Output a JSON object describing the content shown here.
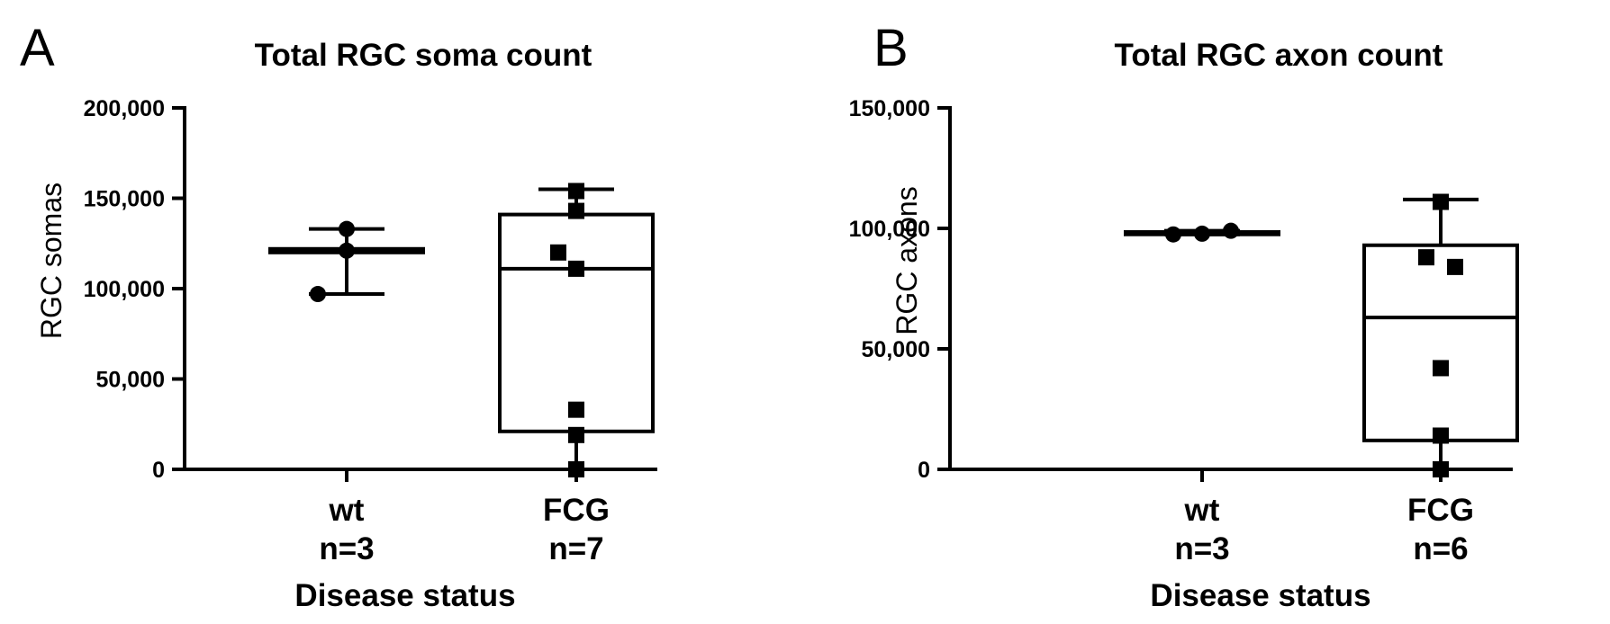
{
  "chart_data": [
    {
      "panel": "A",
      "type": "box",
      "title": "Total RGC soma count",
      "ylabel": "RGC somas",
      "xlabel": "Disease status",
      "ylim": [
        0,
        200000
      ],
      "yticks": [
        0,
        50000,
        100000,
        150000,
        200000
      ],
      "ytick_labels": [
        "0",
        "50,000",
        "100,000",
        "150,000",
        "200,000"
      ],
      "categories": [
        "wt",
        "FCG"
      ],
      "n_labels": [
        "n=3",
        "n=7"
      ],
      "series": [
        {
          "category": "wt",
          "marker": "circle",
          "min": 97000,
          "q1": 120000,
          "median": 121000,
          "q3": 122000,
          "max": 133000,
          "points": [
            97000,
            121000,
            133000
          ]
        },
        {
          "category": "FCG",
          "marker": "square",
          "min": 0,
          "q1": 21000,
          "median": 111000,
          "q3": 141000,
          "max": 155000,
          "points": [
            0,
            19000,
            33000,
            111000,
            120000,
            143000,
            154000
          ]
        }
      ]
    },
    {
      "panel": "B",
      "type": "box",
      "title": "Total RGC axon count",
      "ylabel": "RGC axons",
      "xlabel": "Disease status",
      "ylim": [
        0,
        150000
      ],
      "yticks": [
        0,
        50000,
        100000,
        150000
      ],
      "ytick_labels": [
        "0",
        "50,000",
        "100,000",
        "150,000"
      ],
      "categories": [
        "wt",
        "FCG"
      ],
      "n_labels": [
        "n=3",
        "n=6"
      ],
      "series": [
        {
          "category": "wt",
          "marker": "circle",
          "min": 97500,
          "q1": 97500,
          "median": 98000,
          "q3": 98500,
          "max": 99000,
          "points": [
            97500,
            97800,
            99000
          ]
        },
        {
          "category": "FCG",
          "marker": "square",
          "min": 0,
          "q1": 12000,
          "median": 63000,
          "q3": 93000,
          "max": 112000,
          "points": [
            0,
            14000,
            42000,
            84000,
            88000,
            111000
          ]
        }
      ]
    }
  ]
}
